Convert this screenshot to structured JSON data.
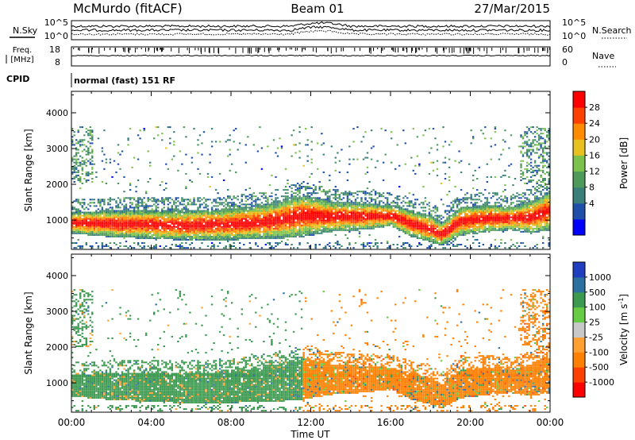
{
  "header": {
    "station": "McMurdo (fitACF)",
    "beam": "Beam 01",
    "date": "27/Mar/2015"
  },
  "noise_panel": {
    "left_label": "N.Sky",
    "right_label": "N.Search",
    "left_ticks": [
      "10^5",
      "10^0"
    ],
    "right_ticks": [
      "10^5",
      "10^0"
    ]
  },
  "freq_panel": {
    "left_label_1": "Freq.",
    "left_label_2": "[MHz]",
    "right_label": "Nave",
    "left_ticks": [
      "18",
      "8"
    ],
    "right_ticks": [
      "60",
      "0"
    ]
  },
  "cpid_panel": {
    "label": "CPID",
    "mode": "normal (fast) 151 RF"
  },
  "x_axis": {
    "label": "Time UT",
    "ticks": [
      "00:00",
      "04:00",
      "08:00",
      "12:00",
      "16:00",
      "20:00",
      "00:00"
    ]
  },
  "chart_data": [
    {
      "type": "heatmap",
      "title": "",
      "xlabel": "Time UT",
      "ylabel": "Slant Range [km]",
      "xlim_hours": [
        0,
        24
      ],
      "ylim_km": [
        180,
        4600
      ],
      "yticks": [
        "1000",
        "2000",
        "3000",
        "4000"
      ],
      "colorbar": {
        "label": "Power [dB]",
        "ticks": [
          "28",
          "24",
          "20",
          "16",
          "12",
          "8",
          "4"
        ],
        "range": [
          0,
          30
        ],
        "colors": [
          "#0000ff",
          "#1f4fa8",
          "#3a7f7a",
          "#4e9a5a",
          "#7cc24a",
          "#e8c020",
          "#ff8c00",
          "#ff4000",
          "#ff0000"
        ]
      },
      "main_echo_band_km": {
        "hours": [
          0,
          2,
          4,
          6,
          8,
          10,
          11.5,
          13,
          14.5,
          16,
          17,
          18,
          18.5,
          19.5,
          21,
          22,
          23,
          24
        ],
        "lower": [
          600,
          500,
          450,
          400,
          420,
          450,
          500,
          650,
          700,
          800,
          500,
          350,
          250,
          550,
          650,
          700,
          600,
          700
        ],
        "upper": [
          1200,
          1250,
          1250,
          1250,
          1300,
          1450,
          1700,
          1500,
          1450,
          1400,
          1250,
          1100,
          900,
          1350,
          1400,
          1350,
          1500,
          1800
        ]
      }
    },
    {
      "type": "heatmap",
      "title": "",
      "xlabel": "Time UT",
      "ylabel": "Slant Range [km]",
      "xlim_hours": [
        0,
        24
      ],
      "ylim_km": [
        180,
        4600
      ],
      "yticks": [
        "1000",
        "2000",
        "3000",
        "4000"
      ],
      "colorbar": {
        "label": "Velocity [m s-1]",
        "label_main": "Velocity [m s",
        "label_sup": "-1",
        "label_end": "]",
        "ticks": [
          "1000",
          "500",
          "100",
          "25",
          "-25",
          "-100",
          "-500",
          "-1000"
        ],
        "range": [
          -1250,
          1250
        ],
        "colors": [
          "#ff0000",
          "#ff4000",
          "#ff8000",
          "#ffa030",
          "#c8c8c8",
          "#66cc44",
          "#3c9a50",
          "#2c70a0",
          "#1f3fc0"
        ]
      },
      "regimes": [
        {
          "hours": [
            0,
            11.5
          ],
          "velocity_ms": 200
        },
        {
          "hours": [
            11.5,
            13.5
          ],
          "velocity_ms": -200
        },
        {
          "hours": [
            13.5,
            24
          ],
          "velocity_ms": -300
        }
      ]
    }
  ]
}
